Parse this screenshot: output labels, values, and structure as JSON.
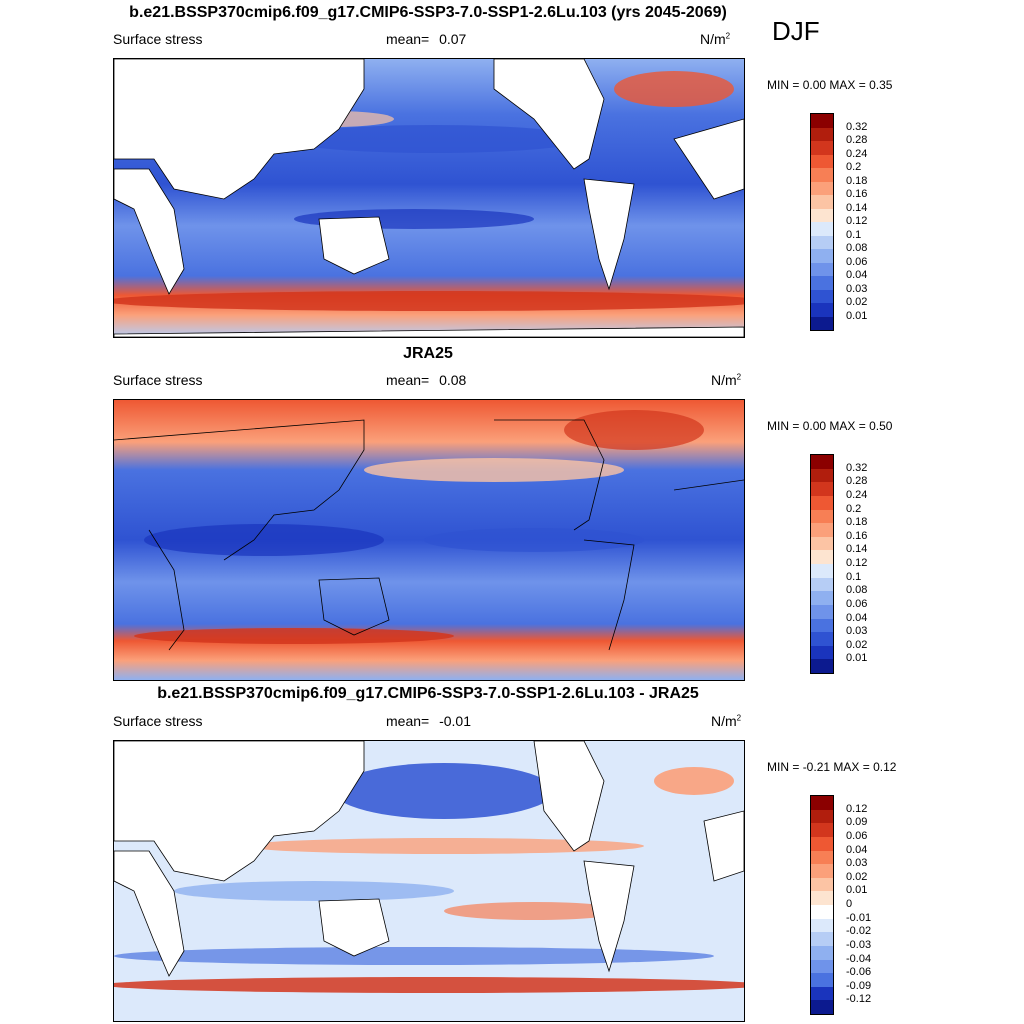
{
  "season": "DJF",
  "panels": [
    {
      "title": "b.e21.BSSP370cmip6.f09_g17.CMIP6-SSP3-7.0-SSP1-2.6Lu.103 (yrs 2045-2069)",
      "left_label": "Surface stress",
      "mean_label": "mean=",
      "mean_value": "0.07",
      "units": "N/m",
      "units_sup": "2",
      "min_label": "MIN =",
      "min_value": "0.00",
      "max_label": "MAX =",
      "max_value": "0.35",
      "colorbar_labels": [
        "0.32",
        "0.28",
        "0.24",
        "0.2",
        "0.18",
        "0.16",
        "0.14",
        "0.12",
        "0.1",
        "0.08",
        "0.06",
        "0.04",
        "0.03",
        "0.02",
        "0.01"
      ],
      "colorbar_colors": [
        "#8b0000",
        "#b11e0d",
        "#d2361d",
        "#ee5833",
        "#f77f55",
        "#fba07a",
        "#fcc4a4",
        "#fde4d0",
        "#dce9fb",
        "#b6cdf5",
        "#8fb0f0",
        "#6f93ea",
        "#4a72e0",
        "#2f53d2",
        "#1a34bd",
        "#0c1a8f"
      ]
    },
    {
      "title": "JRA25",
      "left_label": "Surface stress",
      "mean_label": "mean=",
      "mean_value": "0.08",
      "units": "N/m",
      "units_sup": "2",
      "min_label": "MIN =",
      "min_value": "0.00",
      "max_label": "MAX =",
      "max_value": "0.50",
      "colorbar_labels": [
        "0.32",
        "0.28",
        "0.24",
        "0.2",
        "0.18",
        "0.16",
        "0.14",
        "0.12",
        "0.1",
        "0.08",
        "0.06",
        "0.04",
        "0.03",
        "0.02",
        "0.01"
      ],
      "colorbar_colors": [
        "#8b0000",
        "#b11e0d",
        "#d2361d",
        "#ee5833",
        "#f77f55",
        "#fba07a",
        "#fcc4a4",
        "#fde4d0",
        "#dce9fb",
        "#b6cdf5",
        "#8fb0f0",
        "#6f93ea",
        "#4a72e0",
        "#2f53d2",
        "#1a34bd",
        "#0c1a8f"
      ]
    },
    {
      "title": "b.e21.BSSP370cmip6.f09_g17.CMIP6-SSP3-7.0-SSP1-2.6Lu.103 - JRA25",
      "left_label": "Surface stress",
      "mean_label": "mean=",
      "mean_value": "-0.01",
      "units": "N/m",
      "units_sup": "2",
      "min_label": "MIN =",
      "min_value": "-0.21",
      "max_label": "MAX =",
      "max_value": "0.12",
      "colorbar_labels": [
        "0.12",
        "0.09",
        "0.06",
        "0.04",
        "0.03",
        "0.02",
        "0.01",
        "0",
        "-0.01",
        "-0.02",
        "-0.03",
        "-0.04",
        "-0.06",
        "-0.09",
        "-0.12"
      ],
      "colorbar_colors": [
        "#8b0000",
        "#b11e0d",
        "#d2361d",
        "#ee5833",
        "#f77f55",
        "#fba07a",
        "#fcc4a4",
        "#fde4d0",
        "#ffffff",
        "#dce9fb",
        "#b6cdf5",
        "#8fb0f0",
        "#6f93ea",
        "#4a72e0",
        "#1a34bd",
        "#0c1a8f"
      ]
    }
  ]
}
